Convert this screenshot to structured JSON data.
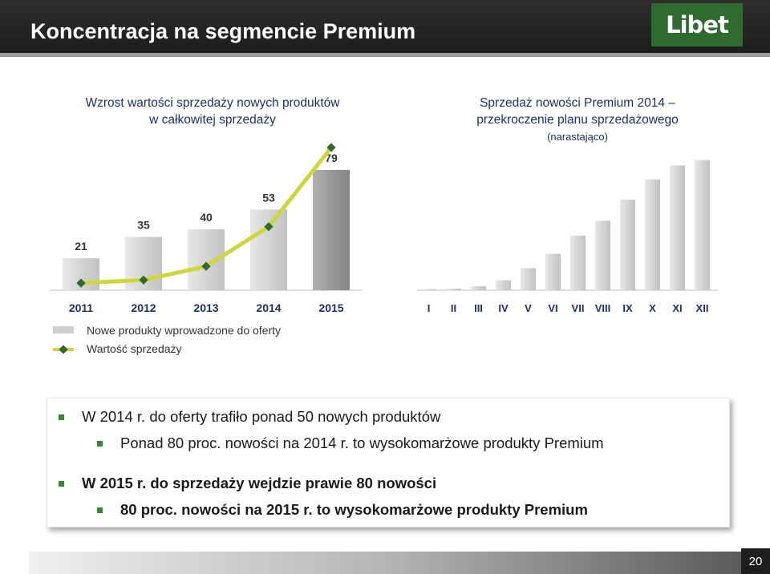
{
  "header": {
    "title": "Koncentracja na segmencie Premium",
    "logo_text": "Libet"
  },
  "left_chart": {
    "title_line1": "Wzrost wartości sprzedaży nowych produktów",
    "title_line2": "w całkowitej sprzedaży"
  },
  "right_chart": {
    "title_line1": "Sprzedaż nowości Premium 2014 –",
    "title_line2": "przekroczenie planu sprzedażowego",
    "subtitle": "(narastająco)"
  },
  "legend": {
    "bars_label": "Nowe produkty wprowadzone do oferty",
    "line_label": "Wartość sprzedaży"
  },
  "chart_data": [
    {
      "type": "bar",
      "categories": [
        "2011",
        "2012",
        "2013",
        "2014",
        "2015"
      ],
      "series": [
        {
          "name": "Nowe produkty wprowadzone do oferty",
          "values": [
            21,
            35,
            40,
            53,
            79
          ]
        },
        {
          "name": "Wartość sprzedaży",
          "type": "line",
          "values": [
            1,
            3,
            12,
            38,
            90
          ]
        }
      ],
      "data_labels": [
        "21",
        "35",
        "40",
        "53",
        "79"
      ],
      "colors": {
        "bars": "#d7d7d7",
        "last_bar": "#9e9e9e",
        "line": "#cfd63a",
        "markers": "#2e6b2e"
      },
      "ylim": [
        0,
        100
      ],
      "legend": "bottom-left"
    },
    {
      "type": "bar",
      "categories": [
        "I",
        "II",
        "III",
        "IV",
        "V",
        "VI",
        "VII",
        "VIII",
        "IX",
        "X",
        "XI",
        "XII"
      ],
      "values": [
        2,
        3,
        7,
        18,
        40,
        66,
        99,
        126,
        164,
        201,
        226,
        236
      ],
      "colors": {
        "bars": "#dcdcdc"
      },
      "ylim": [
        0,
        250
      ]
    }
  ],
  "bullets": [
    {
      "text": "W 2014 r. do oferty trafiło ponad 50 nowych produktów",
      "level": 1,
      "bold": false
    },
    {
      "text": "Ponad  80 proc. nowości na 2014 r. to wysokomarżowe produkty Premium",
      "level": 2,
      "bold": false
    },
    {
      "text": "W 2015 r. do sprzedaży wejdzie prawie 80 nowości",
      "level": 1,
      "bold": true
    },
    {
      "text": "80 proc. nowości na 2015 r. to wysokomarżowe produkty Premium",
      "level": 2,
      "bold": true
    }
  ],
  "footer": {
    "page_number": "20"
  }
}
